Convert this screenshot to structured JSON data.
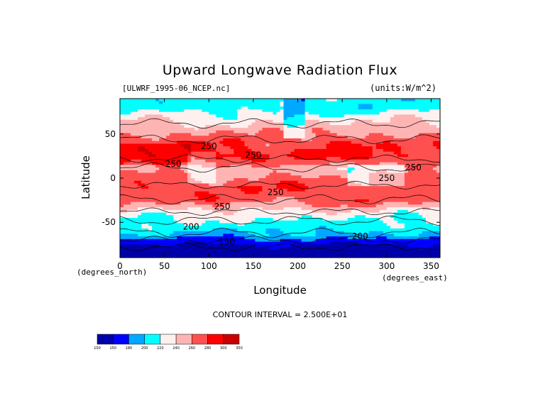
{
  "chart_data": {
    "type": "heatmap",
    "title": "Upward Longwave Radiation Flux",
    "source_label": "[ULWRF_1995-06_NCEP.nc]",
    "units_label": "(units:W/m^2)",
    "xlabel": "Longitude",
    "ylabel": "Latitude",
    "x_units": "(degrees_east)",
    "y_units": "(degrees_north)",
    "xlim": [
      0,
      360
    ],
    "ylim": [
      -90,
      90
    ],
    "x_ticks": [
      0,
      50,
      100,
      150,
      200,
      250,
      300,
      350
    ],
    "y_ticks": [
      -50,
      0,
      50
    ],
    "contour_interval_text": "CONTOUR INTERVAL = 2.500E+01",
    "contour_labels": [
      {
        "text": "250",
        "lon": 100,
        "lat": 36
      },
      {
        "text": "250",
        "lon": 150,
        "lat": 26
      },
      {
        "text": "250",
        "lon": 60,
        "lat": 16
      },
      {
        "text": "250",
        "lon": 300,
        "lat": 0
      },
      {
        "text": "250",
        "lon": 330,
        "lat": 12
      },
      {
        "text": "250",
        "lon": 175,
        "lat": -16
      },
      {
        "text": "250",
        "lon": 115,
        "lat": -32
      },
      {
        "text": "200",
        "lon": 80,
        "lat": -55
      },
      {
        "text": "200",
        "lon": 270,
        "lat": -66
      },
      {
        "text": "150",
        "lon": 120,
        "lat": -72
      }
    ],
    "colorbar": {
      "levels": [
        "100",
        "150",
        "180",
        "200",
        "220",
        "240",
        "260",
        "280",
        "300",
        "350"
      ],
      "colors": [
        "#0000a8",
        "#0000ff",
        "#00a8ff",
        "#00ffff",
        "#fff0f0",
        "#ffb4b4",
        "#ff5050",
        "#ff0000",
        "#c80000"
      ]
    },
    "latitude_bands": [
      {
        "lat": 80,
        "value": 210
      },
      {
        "lat": 60,
        "value": 245
      },
      {
        "lat": 40,
        "value": 275
      },
      {
        "lat": 25,
        "value": 285
      },
      {
        "lat": 10,
        "value": 250
      },
      {
        "lat": -10,
        "value": 275
      },
      {
        "lat": -25,
        "value": 270
      },
      {
        "lat": -40,
        "value": 230
      },
      {
        "lat": -55,
        "value": 210
      },
      {
        "lat": -65,
        "value": 195
      },
      {
        "lat": -75,
        "value": 150
      },
      {
        "lat": -88,
        "value": 120
      }
    ]
  }
}
